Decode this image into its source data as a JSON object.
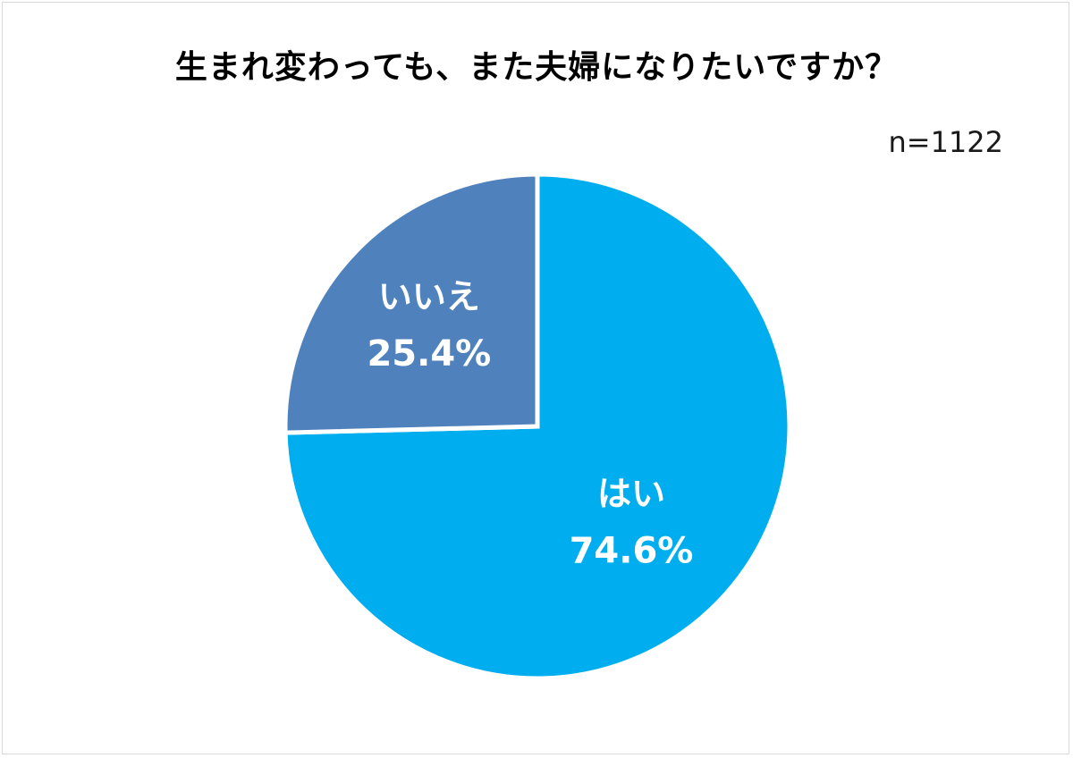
{
  "chart_data": {
    "type": "pie",
    "title": "生まれ変わっても、また夫婦になりたいですか？",
    "sample_size": "n=1122",
    "slices": [
      {
        "label": "はい",
        "value": 74.6,
        "value_label": "74.6%",
        "color": "#00AEEF"
      },
      {
        "label": "いいえ",
        "value": 25.4,
        "value_label": "25.4%",
        "color": "#4F81BD"
      }
    ],
    "start": "top",
    "direction": "clockwise"
  }
}
